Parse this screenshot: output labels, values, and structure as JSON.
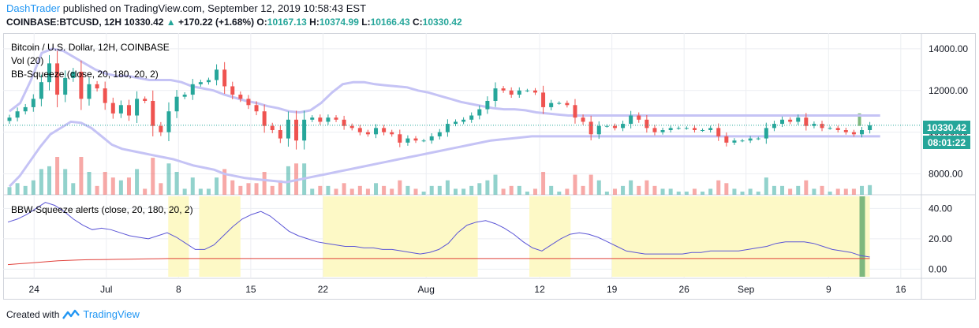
{
  "header": {
    "author": "DashTrader",
    "published_text": "published on TradingView.com, September 12, 2019 10:58:43 EST",
    "symbol": "COINBASE:BTCUSD, 12H",
    "price": "10330.42",
    "arrow": "▲",
    "change": "+170.22 (+1.68%)",
    "o_label": "O:",
    "o_value": "10167.13",
    "h_label": "H:",
    "h_value": "10374.99",
    "l_label": "L:",
    "l_value": "10166.43",
    "c_label": "C:",
    "c_value": "10330.42"
  },
  "footer": {
    "created_with": "Created with",
    "brand": "TradingView"
  },
  "colors": {
    "up": "#26a69a",
    "down": "#ef5350",
    "bands": "#c5c3f5",
    "bbw_line": "#5b55d6",
    "threshold": "#e0403a",
    "squeeze": "#fdf9c6",
    "alert": "#7eb87e",
    "grid": "#eceef2",
    "axis_text": "#131722"
  },
  "chart_data": [
    {
      "type": "candlestick",
      "title": "Bitcoin / U.S. Dollar, 12H, COINBASE",
      "legend": [
        "Vol (20)",
        "BB-Squeeze (close, 20, 180, 20, 2)"
      ],
      "price_label": "10330.42",
      "countdown_label": "08:01:22",
      "ylim": [
        7000,
        14600
      ],
      "yticks": [
        {
          "v": 14000,
          "label": "14000.00"
        },
        {
          "v": 12000,
          "label": "12000.00"
        },
        {
          "v": 10000,
          "label": "10000.00"
        },
        {
          "v": 8000,
          "label": "8000.00"
        }
      ],
      "xlim": [
        "2019-06-21",
        "2019-09-18"
      ],
      "xticks": [
        {
          "date": "2019-06-24",
          "label": "24"
        },
        {
          "date": "2019-07-01",
          "label": "Jul"
        },
        {
          "date": "2019-07-08",
          "label": "8"
        },
        {
          "date": "2019-07-15",
          "label": "15"
        },
        {
          "date": "2019-07-22",
          "label": "22"
        },
        {
          "date": "2019-08-01",
          "label": "Aug"
        },
        {
          "date": "2019-08-12",
          "label": "12"
        },
        {
          "date": "2019-08-19",
          "label": "19"
        },
        {
          "date": "2019-08-26",
          "label": "26"
        },
        {
          "date": "2019-09-01",
          "label": "Sep"
        },
        {
          "date": "2019-09-09",
          "label": "9"
        },
        {
          "date": "2019-09-16",
          "label": "16"
        }
      ],
      "close_series": [
        10700,
        11000,
        11200,
        11600,
        12400,
        13300,
        11800,
        12600,
        12900,
        11600,
        12300,
        12100,
        11400,
        10900,
        11300,
        10800,
        11600,
        11500,
        10300,
        10000,
        11000,
        11700,
        11800,
        12300,
        12400,
        12500,
        13000,
        12200,
        11800,
        11600,
        11300,
        11000,
        10300,
        10100,
        9700,
        10600,
        9600,
        10600,
        10700,
        10500,
        10700,
        10600,
        10300,
        10200,
        10000,
        9900,
        10200,
        10000,
        9900,
        9500,
        9700,
        9600,
        9600,
        9800,
        10000,
        10400,
        10500,
        10600,
        10800,
        11100,
        11500,
        12100,
        12000,
        11800,
        12000,
        12000,
        11900,
        11200,
        11400,
        11400,
        11300,
        10700,
        10500,
        9900,
        10300,
        10300,
        10200,
        10400,
        10800,
        10600,
        10200,
        10000,
        10100,
        10200,
        10200,
        10200,
        10100,
        10100,
        10200,
        9800,
        9500,
        9600,
        9600,
        9700,
        9700,
        10200,
        10400,
        10600,
        10500,
        10700,
        10300,
        10400,
        10200,
        10200,
        10100,
        10000,
        9900,
        10100,
        10330
      ],
      "upper_band": [
        11000,
        11400,
        12500,
        13800,
        14000,
        13900,
        13600,
        13300,
        13000,
        12800,
        12700,
        12700,
        12600,
        12500,
        12500,
        12500,
        12400,
        12200,
        12100,
        12000,
        11800,
        11650,
        11500,
        11400,
        11250,
        11150,
        11000,
        10950,
        11050,
        11400,
        11900,
        12300,
        12400,
        12400,
        12300,
        12250,
        12200,
        12150,
        12000,
        11900,
        11750,
        11600,
        11450,
        11350,
        11250,
        11150,
        11100,
        11100,
        11050,
        10950,
        10900,
        10850,
        10800,
        10800,
        10800,
        10800,
        10800,
        10800,
        10800,
        10800,
        10800,
        10800,
        10800,
        10800,
        10800,
        10800,
        10800,
        10800,
        10800,
        10800,
        10800,
        10800,
        10800,
        10800,
        10800,
        10800,
        10800,
        10800,
        10800,
        10800,
        10800,
        10800
      ],
      "lower_band": [
        7400,
        7900,
        8600,
        9300,
        9900,
        10200,
        10500,
        10450,
        10200,
        9800,
        9400,
        9200,
        9100,
        9000,
        8900,
        8800,
        8700,
        8550,
        8400,
        8300,
        8200,
        8000,
        7900,
        7800,
        7750,
        7700,
        7650,
        7600,
        7700,
        7800,
        7900,
        8000,
        8100,
        8200,
        8300,
        8400,
        8500,
        8600,
        8700,
        8800,
        8900,
        9000,
        9100,
        9200,
        9300,
        9400,
        9500,
        9600,
        9650,
        9700,
        9750,
        9800,
        9800,
        9800,
        9800,
        9800,
        9800,
        9800,
        9800,
        9800,
        9800,
        9800,
        9800,
        9800,
        9800,
        9800,
        9800,
        9800,
        9800,
        9800,
        9800,
        9800,
        9800,
        9800,
        9800,
        9800,
        9800,
        9800,
        9800,
        9800,
        9800,
        9800,
        9800,
        9800,
        9800,
        9800
      ]
    },
    {
      "type": "line",
      "title": "BBW-Squeeze alerts (close, 20, 180, 20, 2)",
      "ylim": [
        -5,
        48
      ],
      "yticks": [
        {
          "v": 40,
          "label": "40.00"
        },
        {
          "v": 20,
          "label": "20.00"
        },
        {
          "v": 0,
          "label": "0.00"
        }
      ],
      "series": [
        {
          "name": "BBW",
          "values": [
            31,
            33,
            36,
            40,
            44,
            42,
            38,
            33,
            29,
            26,
            27,
            26,
            24,
            22,
            21,
            20,
            22,
            24,
            21,
            17,
            13,
            13,
            16,
            22,
            28,
            33,
            36,
            38,
            35,
            30,
            25,
            22,
            20,
            18,
            17,
            16,
            15,
            15,
            14,
            14,
            13,
            13,
            12,
            11,
            10,
            11,
            13,
            17,
            24,
            29,
            31,
            32,
            30,
            27,
            23,
            18,
            14,
            12,
            16,
            20,
            23,
            24,
            23,
            21,
            18,
            15,
            12,
            11,
            10,
            10,
            10,
            10,
            10,
            11,
            11,
            12,
            12,
            12,
            12,
            13,
            14,
            15,
            17,
            18,
            18,
            18,
            17,
            15,
            13,
            12,
            11,
            9,
            8
          ]
        },
        {
          "name": "Threshold",
          "values": [
            3,
            3.5,
            4,
            4.5,
            5,
            5.5,
            5.8,
            6,
            6.2,
            6.3,
            6.4,
            6.5,
            6.6,
            6.7,
            6.8,
            6.9,
            7,
            7,
            7,
            7,
            7,
            7,
            7,
            7,
            7,
            7,
            7,
            7,
            7,
            7,
            7,
            7,
            7,
            7,
            7,
            7,
            7,
            7,
            7,
            7,
            7,
            7,
            7,
            7,
            7,
            7,
            7,
            7,
            7,
            7,
            7,
            7,
            7,
            7,
            7,
            7,
            7,
            7,
            7,
            7,
            7,
            7,
            7,
            7,
            7,
            7,
            7,
            7,
            7,
            7,
            7,
            7,
            7,
            7,
            7,
            7,
            7,
            7,
            7,
            7,
            7,
            7,
            7,
            7,
            7,
            7,
            7
          ]
        }
      ],
      "squeeze_zones": [
        [
          "2019-07-07",
          "2019-07-09"
        ],
        [
          "2019-07-10",
          "2019-07-14"
        ],
        [
          "2019-07-22",
          "2019-08-06"
        ],
        [
          "2019-08-11",
          "2019-08-15"
        ],
        [
          "2019-08-19",
          "2019-09-13"
        ]
      ],
      "alert_date": "2019-09-12"
    }
  ]
}
